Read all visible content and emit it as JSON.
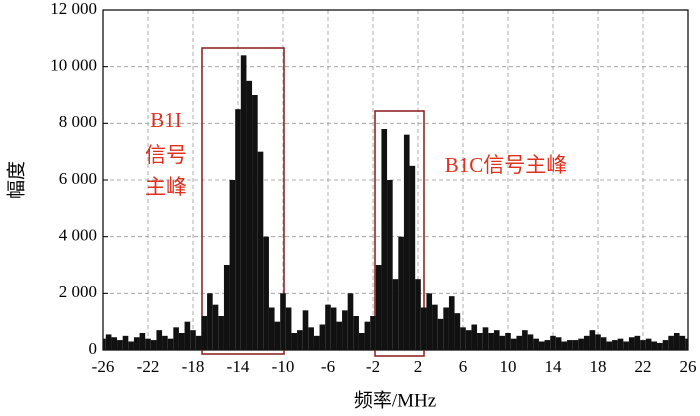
{
  "chart_data": {
    "type": "bar",
    "x_label": "频率/MHz",
    "y_label": "幅度",
    "color": "#111111",
    "annotations": [
      "B1I",
      "信号",
      "主峰",
      "B1C信号主峰"
    ],
    "x": [
      -26,
      -25.5,
      -25,
      -24.5,
      -24,
      -23.5,
      -23,
      -22.5,
      -22,
      -21.5,
      -21,
      -20.5,
      -20,
      -19.5,
      -19,
      -18.5,
      -18,
      -17.5,
      -17,
      -16.5,
      -16,
      -15.5,
      -15,
      -14.5,
      -14,
      -13.5,
      -13,
      -12.5,
      -12,
      -11.5,
      -11,
      -10.5,
      -10,
      -9.5,
      -9,
      -8.5,
      -8,
      -7.5,
      -7,
      -6.5,
      -6,
      -5.5,
      -5,
      -4.5,
      -4,
      -3.5,
      -3,
      -2.5,
      -2,
      -1.5,
      -1,
      -0.5,
      0,
      0.5,
      1,
      1.5,
      2,
      2.5,
      3,
      3.5,
      4,
      4.5,
      5,
      5.5,
      6,
      6.5,
      7,
      7.5,
      8,
      8.5,
      9,
      9.5,
      10,
      10.5,
      11,
      11.5,
      12,
      12.5,
      13,
      13.5,
      14,
      14.5,
      15,
      15.5,
      16,
      16.5,
      17,
      17.5,
      18,
      18.5,
      19,
      19.5,
      20,
      20.5,
      21,
      21.5,
      22,
      22.5,
      23,
      23.5,
      24,
      24.5,
      25,
      25.5,
      26
    ],
    "values": [
      400,
      550,
      450,
      350,
      500,
      300,
      450,
      600,
      400,
      350,
      700,
      500,
      400,
      800,
      600,
      1000,
      700,
      500,
      1200,
      2000,
      1600,
      1200,
      3000,
      6000,
      8500,
      10400,
      9500,
      9000,
      7000,
      4000,
      1500,
      1000,
      2000,
      1500,
      600,
      700,
      1400,
      800,
      500,
      900,
      1600,
      1500,
      1000,
      1400,
      2000,
      1200,
      600,
      1000,
      1200,
      3000,
      7800,
      6000,
      2500,
      4000,
      7600,
      6500,
      2500,
      1500,
      2000,
      1600,
      1100,
      1500,
      1900,
      1300,
      800,
      700,
      900,
      600,
      800,
      600,
      700,
      500,
      600,
      400,
      500,
      700,
      550,
      400,
      300,
      350,
      500,
      450,
      300,
      350,
      350,
      400,
      500,
      700,
      550,
      450,
      300,
      350,
      400,
      300,
      450,
      500,
      350,
      400,
      300,
      250,
      350,
      500,
      600,
      500,
      400
    ],
    "xlim": [
      -26,
      26
    ],
    "ylim": [
      0,
      12000
    ],
    "xticks": [
      -26,
      -22,
      -18,
      -14,
      -10,
      -6,
      -2,
      2,
      6,
      10,
      14,
      18,
      22,
      26
    ],
    "yticks": [
      0,
      {
        "value": 2000,
        "label": "2 000"
      },
      {
        "value": 4000,
        "label": "4 000"
      },
      {
        "value": 6000,
        "label": "6 000"
      },
      {
        "value": 8000,
        "label": "8 000"
      },
      {
        "value": 10000,
        "label": "10 000"
      },
      {
        "value": 12000,
        "label": "12 000"
      }
    ],
    "grid": true
  }
}
